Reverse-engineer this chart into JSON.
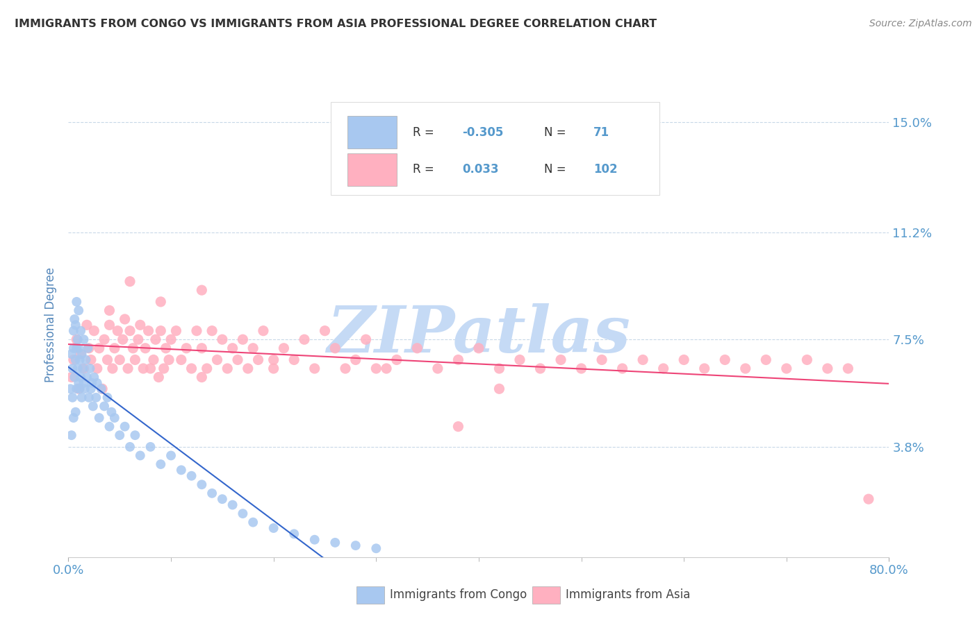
{
  "title": "IMMIGRANTS FROM CONGO VS IMMIGRANTS FROM ASIA PROFESSIONAL DEGREE CORRELATION CHART",
  "source": "Source: ZipAtlas.com",
  "ylabel_label": "Professional Degree",
  "xlim": [
    0.0,
    0.8
  ],
  "ylim": [
    0.0,
    0.16
  ],
  "yticks": [
    0.0,
    0.038,
    0.075,
    0.112,
    0.15
  ],
  "yticklabels": [
    "",
    "3.8%",
    "7.5%",
    "11.2%",
    "15.0%"
  ],
  "xtick_left": 0.0,
  "xtick_right": 0.8,
  "xtick_left_label": "0.0%",
  "xtick_right_label": "80.0%",
  "congo_R": -0.305,
  "congo_N": 71,
  "asia_R": 0.033,
  "asia_N": 102,
  "congo_color": "#a8c8f0",
  "asia_color": "#ffb0c0",
  "congo_line_color": "#3366cc",
  "asia_line_color": "#ee4477",
  "legend_label_congo": "Immigrants from Congo",
  "legend_label_asia": "Immigrants from Asia",
  "watermark_text": "ZIPatlas",
  "watermark_color": "#c5daf5",
  "background_color": "#ffffff",
  "title_color": "#333333",
  "axis_label_color": "#5588bb",
  "tick_color": "#5599cc",
  "grid_color": "#c8d8e8",
  "congo_points_x": [
    0.002,
    0.003,
    0.003,
    0.004,
    0.004,
    0.005,
    0.005,
    0.005,
    0.006,
    0.006,
    0.007,
    0.007,
    0.007,
    0.008,
    0.008,
    0.008,
    0.009,
    0.009,
    0.01,
    0.01,
    0.01,
    0.011,
    0.011,
    0.012,
    0.012,
    0.013,
    0.013,
    0.014,
    0.015,
    0.015,
    0.016,
    0.017,
    0.018,
    0.019,
    0.02,
    0.021,
    0.022,
    0.023,
    0.024,
    0.025,
    0.027,
    0.028,
    0.03,
    0.032,
    0.035,
    0.038,
    0.04,
    0.042,
    0.045,
    0.05,
    0.055,
    0.06,
    0.065,
    0.07,
    0.08,
    0.09,
    0.1,
    0.11,
    0.12,
    0.13,
    0.14,
    0.15,
    0.16,
    0.17,
    0.18,
    0.2,
    0.22,
    0.24,
    0.26,
    0.28,
    0.3
  ],
  "congo_points_y": [
    0.058,
    0.042,
    0.07,
    0.055,
    0.065,
    0.072,
    0.048,
    0.078,
    0.062,
    0.082,
    0.05,
    0.068,
    0.08,
    0.058,
    0.072,
    0.088,
    0.065,
    0.075,
    0.06,
    0.072,
    0.085,
    0.058,
    0.068,
    0.062,
    0.078,
    0.055,
    0.07,
    0.065,
    0.06,
    0.075,
    0.058,
    0.068,
    0.062,
    0.072,
    0.055,
    0.065,
    0.058,
    0.06,
    0.052,
    0.062,
    0.055,
    0.06,
    0.048,
    0.058,
    0.052,
    0.055,
    0.045,
    0.05,
    0.048,
    0.042,
    0.045,
    0.038,
    0.042,
    0.035,
    0.038,
    0.032,
    0.035,
    0.03,
    0.028,
    0.025,
    0.022,
    0.02,
    0.018,
    0.015,
    0.012,
    0.01,
    0.008,
    0.006,
    0.005,
    0.004,
    0.003
  ],
  "asia_points_x": [
    0.003,
    0.005,
    0.008,
    0.01,
    0.012,
    0.015,
    0.018,
    0.02,
    0.022,
    0.025,
    0.028,
    0.03,
    0.033,
    0.035,
    0.038,
    0.04,
    0.043,
    0.045,
    0.048,
    0.05,
    0.053,
    0.055,
    0.058,
    0.06,
    0.063,
    0.065,
    0.068,
    0.07,
    0.073,
    0.075,
    0.078,
    0.08,
    0.083,
    0.085,
    0.088,
    0.09,
    0.093,
    0.095,
    0.098,
    0.1,
    0.105,
    0.11,
    0.115,
    0.12,
    0.125,
    0.13,
    0.135,
    0.14,
    0.145,
    0.15,
    0.155,
    0.16,
    0.165,
    0.17,
    0.175,
    0.18,
    0.185,
    0.19,
    0.2,
    0.21,
    0.22,
    0.23,
    0.24,
    0.25,
    0.26,
    0.27,
    0.28,
    0.29,
    0.3,
    0.32,
    0.34,
    0.36,
    0.38,
    0.4,
    0.42,
    0.44,
    0.46,
    0.48,
    0.5,
    0.52,
    0.54,
    0.56,
    0.58,
    0.6,
    0.62,
    0.64,
    0.66,
    0.68,
    0.7,
    0.72,
    0.74,
    0.76,
    0.38,
    0.42,
    0.13,
    0.09,
    0.06,
    0.04,
    0.13,
    0.2,
    0.31,
    0.78
  ],
  "asia_points_y": [
    0.062,
    0.068,
    0.075,
    0.058,
    0.07,
    0.065,
    0.08,
    0.072,
    0.068,
    0.078,
    0.065,
    0.072,
    0.058,
    0.075,
    0.068,
    0.08,
    0.065,
    0.072,
    0.078,
    0.068,
    0.075,
    0.082,
    0.065,
    0.078,
    0.072,
    0.068,
    0.075,
    0.08,
    0.065,
    0.072,
    0.078,
    0.065,
    0.068,
    0.075,
    0.062,
    0.078,
    0.065,
    0.072,
    0.068,
    0.075,
    0.078,
    0.068,
    0.072,
    0.065,
    0.078,
    0.072,
    0.065,
    0.078,
    0.068,
    0.075,
    0.065,
    0.072,
    0.068,
    0.075,
    0.065,
    0.072,
    0.068,
    0.078,
    0.065,
    0.072,
    0.068,
    0.075,
    0.065,
    0.078,
    0.072,
    0.065,
    0.068,
    0.075,
    0.065,
    0.068,
    0.072,
    0.065,
    0.068,
    0.072,
    0.065,
    0.068,
    0.065,
    0.068,
    0.065,
    0.068,
    0.065,
    0.068,
    0.065,
    0.068,
    0.065,
    0.068,
    0.065,
    0.068,
    0.065,
    0.068,
    0.065,
    0.065,
    0.045,
    0.058,
    0.092,
    0.088,
    0.095,
    0.085,
    0.062,
    0.068,
    0.065,
    0.02
  ]
}
